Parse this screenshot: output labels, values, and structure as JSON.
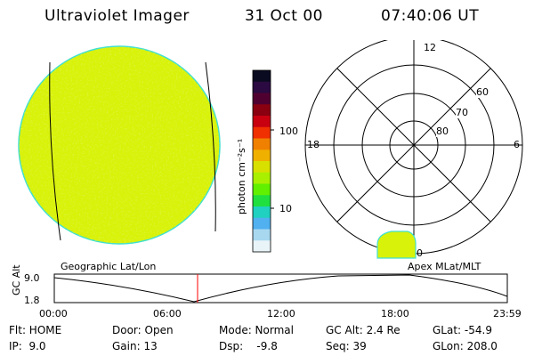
{
  "header": {
    "title": "Ultraviolet Imager",
    "date": "31 Oct 00",
    "time": "07:40:06 UT"
  },
  "colors": {
    "aurora_fill": "#d9f20a",
    "limb": "#40e0d0",
    "background": "#ffffff",
    "line": "#000000",
    "marker": "#ff0000"
  },
  "colorbar": {
    "unit_label": "photon cm⁻²s⁻¹",
    "tick_labels": [
      "100",
      "10"
    ],
    "colors": [
      "#0a0a20",
      "#2a0a40",
      "#500030",
      "#8a0010",
      "#c80010",
      "#f03000",
      "#f08000",
      "#f0b000",
      "#d8e000",
      "#a8f000",
      "#60f000",
      "#20e040",
      "#20d0c0",
      "#50b0f0",
      "#a8d8f0",
      "#e8f4f8"
    ]
  },
  "geo_panel": {
    "label": "Geographic Lat/Lon"
  },
  "polar_panel": {
    "label": "Apex MLat/MLT",
    "mlt_labels": {
      "top": "12",
      "left": "18",
      "right": "6",
      "bottom": "0"
    },
    "lat_labels": [
      "60",
      "70",
      "80"
    ]
  },
  "orbit_panel": {
    "axis_label": "GC Alt",
    "y_ticks": [
      "9.0",
      "1.8"
    ],
    "x_ticks": [
      "00:00",
      "06:00",
      "12:00",
      "18:00",
      "23:59"
    ]
  },
  "footer": {
    "row1": {
      "filter": "Flt: HOME",
      "door": "Door: Open",
      "mode": "Mode: Normal",
      "gc_alt": "GC Alt: 2.4 Re",
      "glat": "GLat: -54.9"
    },
    "row2": {
      "ip": "IP:  9.0",
      "gain": "Gain: 13",
      "dsp": "Dsp:    -9.8",
      "seq": "Seq: 39",
      "glon": "GLon: 208.0"
    }
  }
}
